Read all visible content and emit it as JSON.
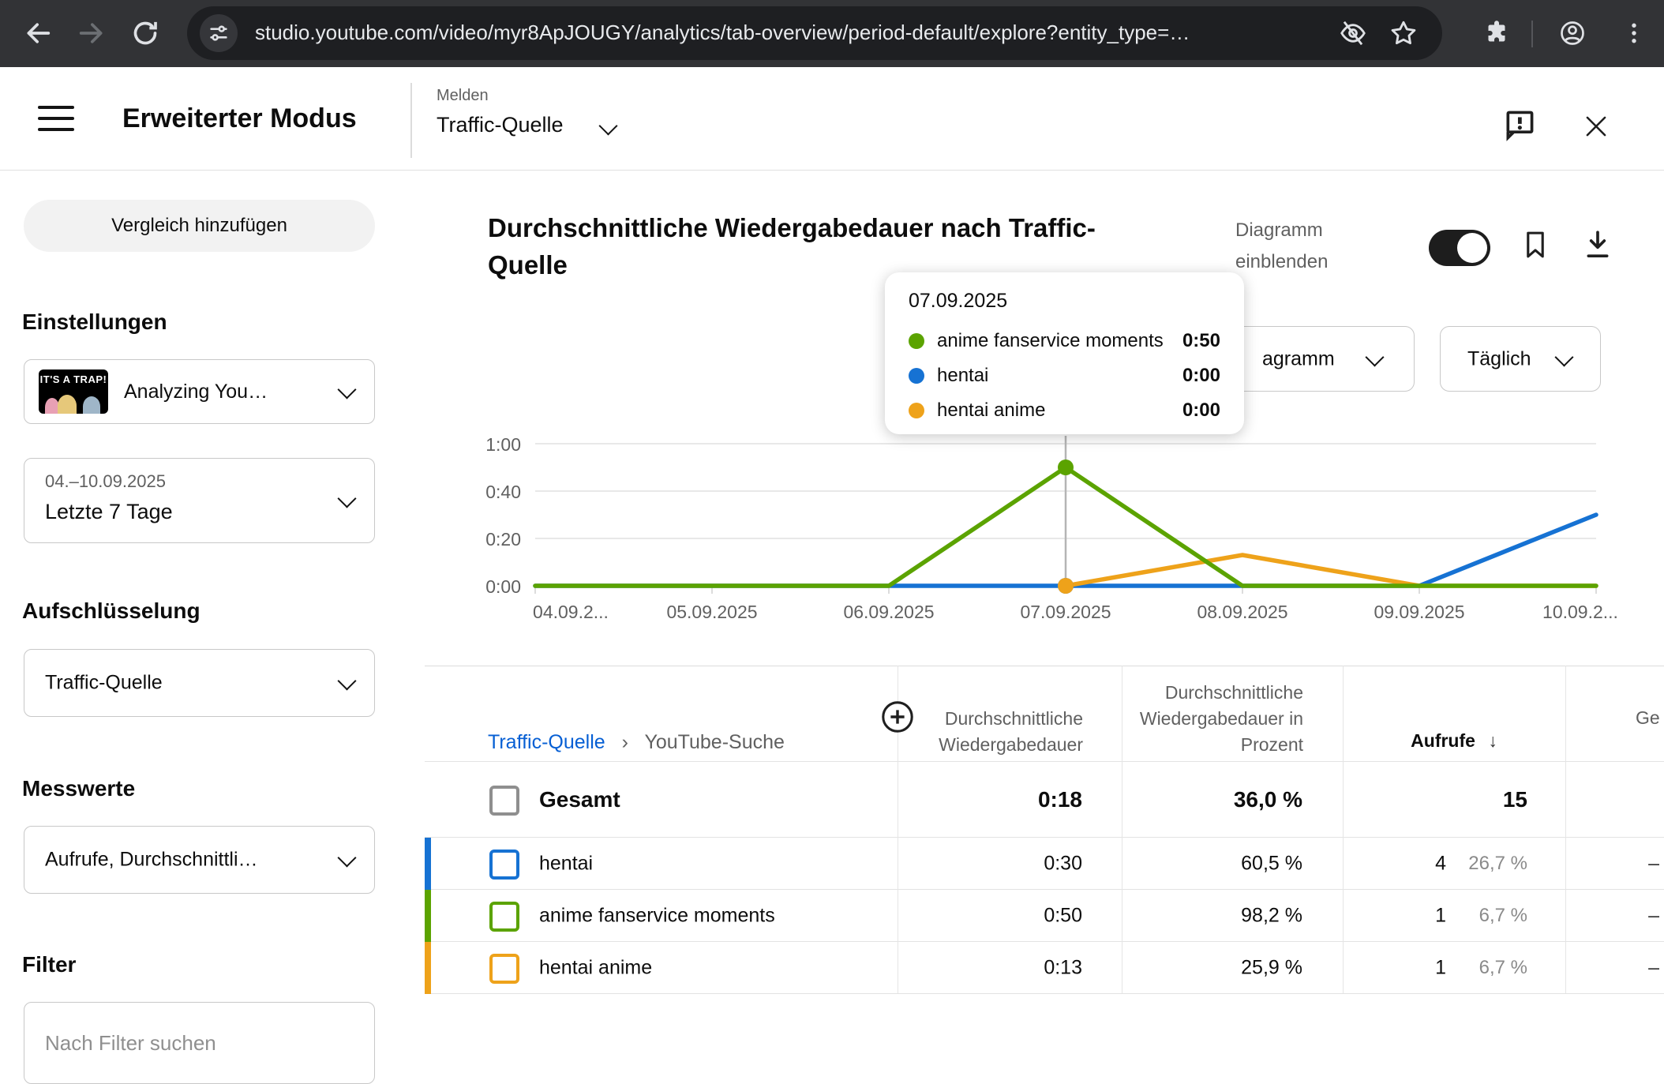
{
  "browser": {
    "url": "studio.youtube.com/video/myr8ApJOUGY/analytics/tab-overview/period-default/explore?entity_type=…"
  },
  "header": {
    "title": "Erweiterter Modus",
    "report_label": "Melden",
    "report_value": "Traffic-Quelle"
  },
  "sidebar": {
    "compare_button": "Vergleich hinzufügen",
    "settings_heading": "Einstellungen",
    "video_select": {
      "thumb_text": "IT'S A TRAP!",
      "label": "Analyzing You…"
    },
    "date_select": {
      "range": "04.–10.09.2025",
      "label": "Letzte 7 Tage"
    },
    "breakdown_heading": "Aufschlüsselung",
    "breakdown_value": "Traffic-Quelle",
    "metrics_heading": "Messwerte",
    "metrics_value": "Aufrufe, Durchschnittli…",
    "filter_heading": "Filter",
    "filter_placeholder": "Nach Filter suchen"
  },
  "chart": {
    "title": "Durchschnittliche Wiedergabedauer nach Traffic-Quelle",
    "show_label": "Diagramm einblenden",
    "type_select_visible_label": "agramm",
    "granularity_select": "Täglich",
    "tooltip": {
      "date": "07.09.2025",
      "entries": [
        {
          "label": "anime fanservice moments",
          "value": "0:50",
          "color": "#5ba300"
        },
        {
          "label": "hentai",
          "value": "0:00",
          "color": "#1672d3"
        },
        {
          "label": "hentai anime",
          "value": "0:00",
          "color": "#eea21a"
        }
      ]
    }
  },
  "chart_data": {
    "type": "line",
    "x": [
      "04.09.2025",
      "05.09.2025",
      "06.09.2025",
      "07.09.2025",
      "08.09.2025",
      "09.09.2025",
      "10.09.2025"
    ],
    "x_labels": [
      "04.09.2...",
      "05.09.2025",
      "06.09.2025",
      "07.09.2025",
      "08.09.2025",
      "09.09.2025",
      "10.09.2..."
    ],
    "y_ticks_seconds": [
      0,
      20,
      40,
      60
    ],
    "y_tick_labels": [
      "1:00",
      "0:40",
      "0:20",
      "0:00"
    ],
    "ylim": [
      0,
      60
    ],
    "highlight_index": 3,
    "series": [
      {
        "name": "hentai",
        "color": "#1672d3",
        "values": [
          0,
          0,
          0,
          0,
          0,
          0,
          30
        ]
      },
      {
        "name": "hentai anime",
        "color": "#eea21a",
        "values": [
          null,
          null,
          null,
          0,
          13,
          0,
          0
        ]
      },
      {
        "name": "anime fanservice moments",
        "color": "#5ba300",
        "values": [
          0,
          0,
          0,
          50,
          0,
          0,
          0
        ]
      }
    ]
  },
  "table": {
    "breadcrumb": {
      "link": "Traffic-Quelle",
      "sep": "›",
      "current": "YouTube-Suche"
    },
    "columns": {
      "duration": "Durchschnittliche Wiedergabedauer",
      "percent": "Durchschnittliche Wiedergabedauer in Prozent",
      "views": "Aufrufe",
      "sort_arrow": "↓",
      "last": "Ge"
    },
    "total": {
      "label": "Gesamt",
      "duration": "0:18",
      "percent": "36,0 %",
      "views": "15",
      "checkbox_color": "#8f8f8f"
    },
    "rows": [
      {
        "label": "hentai",
        "color": "#1672d3",
        "duration": "0:30",
        "percent": "60,5 %",
        "views": "4",
        "views_share": "26,7 %",
        "last": "–"
      },
      {
        "label": "anime fanservice moments",
        "color": "#5ba300",
        "duration": "0:50",
        "percent": "98,2 %",
        "views": "1",
        "views_share": "6,7 %",
        "last": "–"
      },
      {
        "label": "hentai anime",
        "color": "#eea21a",
        "duration": "0:13",
        "percent": "25,9 %",
        "views": "1",
        "views_share": "6,7 %",
        "last": "–"
      }
    ]
  }
}
